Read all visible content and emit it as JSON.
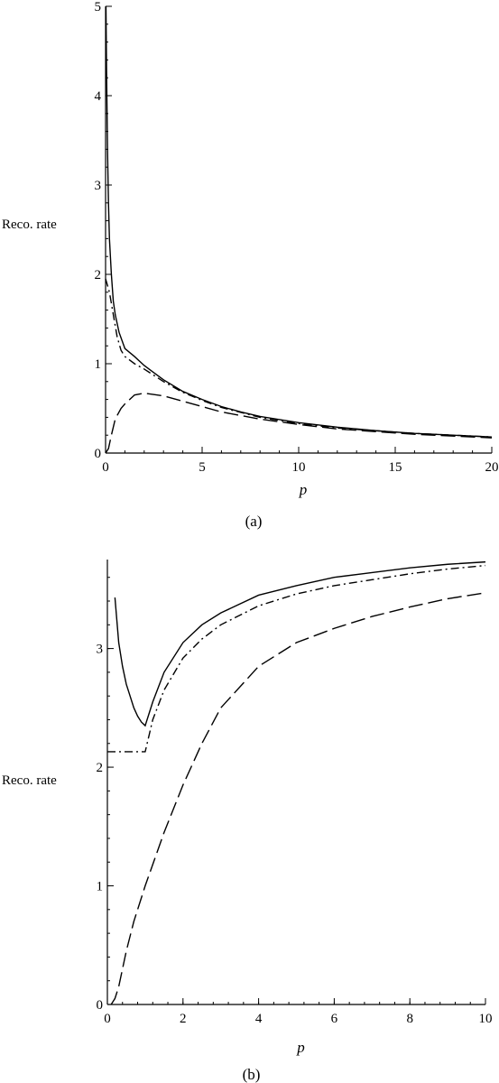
{
  "chart_data": [
    {
      "type": "line",
      "caption": "(a)",
      "xlabel": "p",
      "ylabel": "Reco. rate",
      "xlim": [
        0,
        20
      ],
      "ylim": [
        0,
        5
      ],
      "xticks": [
        0,
        5,
        10,
        15,
        20
      ],
      "yticks": [
        0,
        1,
        2,
        3,
        4,
        5
      ],
      "series": [
        {
          "style": "solid",
          "x": [
            0.02,
            0.05,
            0.1,
            0.15,
            0.2,
            0.3,
            0.4,
            0.5,
            0.7,
            1.0,
            1.5,
            2,
            2.5,
            3,
            4,
            5,
            6,
            7,
            8,
            10,
            12,
            14,
            16,
            18,
            20
          ],
          "y": [
            5.0,
            4.3,
            3.4,
            2.8,
            2.4,
            2.0,
            1.7,
            1.55,
            1.35,
            1.17,
            1.08,
            0.98,
            0.9,
            0.82,
            0.69,
            0.6,
            0.52,
            0.46,
            0.41,
            0.34,
            0.29,
            0.25,
            0.22,
            0.2,
            0.18
          ]
        },
        {
          "style": "dash-dot",
          "x": [
            0,
            0.2,
            0.4,
            0.6,
            0.8,
            1.0,
            1.5,
            2,
            3,
            4,
            5,
            6,
            8,
            10,
            12,
            14,
            16,
            18,
            20
          ],
          "y": [
            1.95,
            1.8,
            1.55,
            1.3,
            1.15,
            1.08,
            1.0,
            0.94,
            0.8,
            0.68,
            0.59,
            0.51,
            0.4,
            0.33,
            0.28,
            0.25,
            0.22,
            0.2,
            0.18
          ]
        },
        {
          "style": "long-dash",
          "x": [
            0,
            0.15,
            0.3,
            0.5,
            0.8,
            1.0,
            1.5,
            2,
            3,
            4,
            5,
            6,
            8,
            10,
            12,
            14,
            16,
            18,
            20
          ],
          "y": [
            0,
            0.05,
            0.2,
            0.38,
            0.5,
            0.55,
            0.65,
            0.67,
            0.64,
            0.58,
            0.52,
            0.46,
            0.38,
            0.32,
            0.27,
            0.24,
            0.21,
            0.19,
            0.17
          ]
        }
      ]
    },
    {
      "type": "line",
      "caption": "(b)",
      "xlabel": "p",
      "ylabel": "Reco. rate",
      "xlim": [
        0,
        10
      ],
      "ylim": [
        0,
        3.75
      ],
      "xticks": [
        0,
        2,
        4,
        6,
        8,
        10
      ],
      "yticks": [
        0,
        1,
        2,
        3
      ],
      "series": [
        {
          "style": "solid",
          "x": [
            0.2,
            0.3,
            0.4,
            0.5,
            0.6,
            0.7,
            0.8,
            0.9,
            1.0,
            1.2,
            1.5,
            2,
            2.5,
            3,
            4,
            5,
            6,
            7,
            8,
            9,
            10
          ],
          "y": [
            3.43,
            3.05,
            2.85,
            2.7,
            2.6,
            2.5,
            2.43,
            2.38,
            2.35,
            2.55,
            2.8,
            3.05,
            3.2,
            3.3,
            3.45,
            3.53,
            3.6,
            3.64,
            3.68,
            3.71,
            3.73
          ]
        },
        {
          "style": "dash-dot",
          "x": [
            0,
            0.5,
            1.0,
            1.2,
            1.5,
            2,
            2.5,
            3,
            4,
            5,
            6,
            7,
            8,
            9,
            10
          ],
          "y": [
            2.13,
            2.13,
            2.13,
            2.4,
            2.65,
            2.92,
            3.08,
            3.2,
            3.36,
            3.46,
            3.53,
            3.58,
            3.63,
            3.67,
            3.7
          ]
        },
        {
          "style": "long-dash",
          "x": [
            0.1,
            0.2,
            0.3,
            0.4,
            0.5,
            0.7,
            1.0,
            1.5,
            2,
            2.5,
            3,
            4,
            5,
            6,
            7,
            8,
            9,
            10
          ],
          "y": [
            0,
            0.05,
            0.15,
            0.3,
            0.45,
            0.7,
            1.0,
            1.45,
            1.85,
            2.2,
            2.5,
            2.85,
            3.05,
            3.17,
            3.27,
            3.35,
            3.42,
            3.47
          ]
        }
      ]
    }
  ]
}
